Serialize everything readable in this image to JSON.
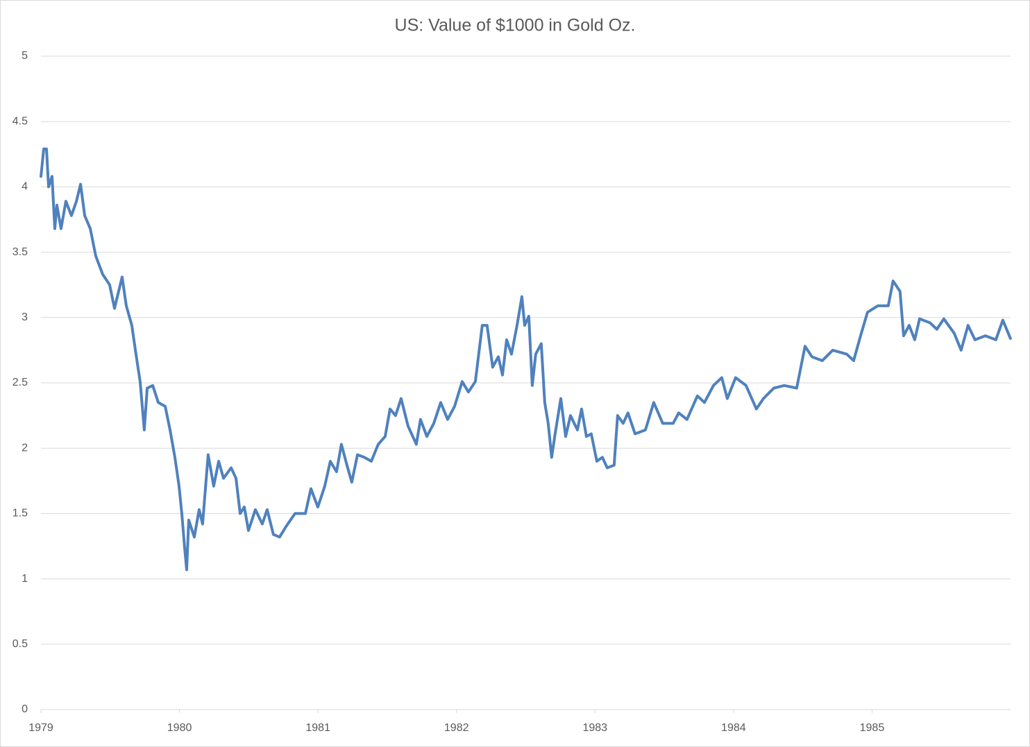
{
  "chart_data": {
    "type": "line",
    "title": "US: Value of $1000 in Gold Oz.",
    "x": [
      1979.0,
      1979.02,
      1979.04,
      1979.055,
      1979.08,
      1979.1,
      1979.115,
      1979.145,
      1979.18,
      1979.22,
      1979.256,
      1979.286,
      1979.316,
      1979.356,
      1979.396,
      1979.446,
      1979.496,
      1979.531,
      1979.586,
      1979.616,
      1979.656,
      1979.686,
      1979.716,
      1979.746,
      1979.767,
      1979.807,
      1979.847,
      1979.897,
      1979.932,
      1979.967,
      1979.997,
      1980.017,
      1980.037,
      1980.052,
      1980.067,
      1980.107,
      1980.142,
      1980.167,
      1980.207,
      1980.247,
      1980.283,
      1980.318,
      1980.373,
      1980.408,
      1980.438,
      1980.468,
      1980.498,
      1980.548,
      1980.598,
      1980.633,
      1980.678,
      1980.723,
      1980.769,
      1980.834,
      1980.909,
      1980.949,
      1980.999,
      1981.049,
      1981.089,
      1981.134,
      1981.169,
      1981.209,
      1981.244,
      1981.285,
      1981.335,
      1981.385,
      1981.435,
      1981.485,
      1981.52,
      1981.56,
      1981.6,
      1981.65,
      1981.71,
      1981.74,
      1981.786,
      1981.836,
      1981.886,
      1981.936,
      1981.986,
      1982.041,
      1982.086,
      1982.136,
      1982.186,
      1982.221,
      1982.261,
      1982.302,
      1982.332,
      1982.362,
      1982.397,
      1982.437,
      1982.472,
      1982.492,
      1982.522,
      1982.547,
      1982.572,
      1982.612,
      1982.637,
      1982.662,
      1982.687,
      1982.712,
      1982.753,
      1982.788,
      1982.823,
      1982.873,
      1982.903,
      1982.938,
      1982.973,
      1983.013,
      1983.053,
      1983.088,
      1983.138,
      1983.163,
      1983.203,
      1983.238,
      1983.289,
      1983.364,
      1983.424,
      1983.489,
      1983.564,
      1983.604,
      1983.664,
      1983.739,
      1983.79,
      1983.855,
      1983.915,
      1983.955,
      1984.015,
      1984.09,
      1984.165,
      1984.216,
      1984.291,
      1984.366,
      1984.456,
      1984.516,
      1984.566,
      1984.641,
      1984.716,
      1984.817,
      1984.867,
      1984.917,
      1984.967,
      1985.042,
      1985.117,
      1985.152,
      1985.202,
      1985.228,
      1985.268,
      1985.308,
      1985.343,
      1985.418,
      1985.468,
      1985.518,
      1985.593,
      1985.643,
      1985.693,
      1985.743,
      1985.818,
      1985.894,
      1985.944,
      1985.999
    ],
    "values": [
      4.08,
      4.29,
      4.29,
      4.0,
      4.08,
      3.68,
      3.86,
      3.68,
      3.89,
      3.78,
      3.89,
      4.02,
      3.78,
      3.68,
      3.47,
      3.33,
      3.25,
      3.07,
      3.31,
      3.09,
      2.94,
      2.72,
      2.51,
      2.14,
      2.46,
      2.48,
      2.35,
      2.32,
      2.14,
      1.93,
      1.71,
      1.5,
      1.24,
      1.07,
      1.45,
      1.32,
      1.53,
      1.42,
      1.95,
      1.71,
      1.9,
      1.77,
      1.85,
      1.77,
      1.5,
      1.55,
      1.37,
      1.53,
      1.42,
      1.53,
      1.34,
      1.32,
      1.4,
      1.5,
      1.5,
      1.69,
      1.55,
      1.71,
      1.9,
      1.82,
      2.03,
      1.87,
      1.74,
      1.95,
      1.93,
      1.9,
      2.03,
      2.09,
      2.3,
      2.25,
      2.38,
      2.17,
      2.03,
      2.22,
      2.09,
      2.19,
      2.35,
      2.22,
      2.32,
      2.51,
      2.43,
      2.51,
      2.94,
      2.94,
      2.62,
      2.7,
      2.56,
      2.83,
      2.72,
      2.94,
      3.16,
      2.94,
      3.01,
      2.48,
      2.72,
      2.8,
      2.35,
      2.19,
      1.93,
      2.11,
      2.38,
      2.09,
      2.25,
      2.14,
      2.3,
      2.09,
      2.11,
      1.9,
      1.93,
      1.85,
      1.87,
      2.25,
      2.19,
      2.27,
      2.11,
      2.14,
      2.35,
      2.19,
      2.19,
      2.27,
      2.22,
      2.4,
      2.35,
      2.48,
      2.54,
      2.38,
      2.54,
      2.48,
      2.3,
      2.38,
      2.46,
      2.48,
      2.46,
      2.78,
      2.7,
      2.67,
      2.75,
      2.72,
      2.67,
      2.86,
      3.04,
      3.09,
      3.09,
      3.28,
      3.2,
      2.86,
      2.94,
      2.83,
      2.99,
      2.96,
      2.91,
      2.99,
      2.88,
      2.75,
      2.94,
      2.83,
      2.86,
      2.83,
      2.98,
      2.84
    ],
    "color": "#4f81bd",
    "xlim": [
      1979,
      1986
    ],
    "xticks": [
      1979,
      1980,
      1981,
      1982,
      1983,
      1984,
      1985
    ],
    "ylim": [
      0,
      5
    ],
    "yticks": [
      0,
      0.5,
      1,
      1.5,
      2,
      2.5,
      3,
      3.5,
      4,
      4.5,
      5
    ],
    "grid": true
  }
}
